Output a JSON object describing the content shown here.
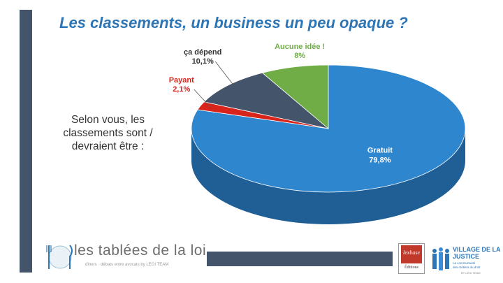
{
  "slide": {
    "title": "Les classements, un business un peu opaque ?",
    "question": "Selon vous, les classements sont / devraient être :"
  },
  "chart_data": {
    "type": "pie",
    "title": "",
    "slices": [
      {
        "label": "Gratuit",
        "value": 79.8,
        "value_label": "79,8%",
        "color": "#2e86cf",
        "side_color": "#1f5f96",
        "label_color": "#ffffff"
      },
      {
        "label": "Payant",
        "value": 2.1,
        "value_label": "2,1%",
        "color": "#d9241c",
        "side_color": "#8e1610",
        "label_color": "#d9241c"
      },
      {
        "label": "ça dépend",
        "value": 10.1,
        "value_label": "10,1%",
        "color": "#44546a",
        "side_color": "#2c3847",
        "label_color": "#333333"
      },
      {
        "label": "Aucune idée !",
        "value": 8,
        "value_label": "8%",
        "color": "#70ad47",
        "side_color": "#4c7a2f",
        "label_color": "#70ad47"
      }
    ],
    "style": "3d"
  },
  "footer": {
    "brand": "les tablées de la loi",
    "tagline": "dîners · débats entre avocats by LEGI TEAM",
    "lexbase_word": "lexbase",
    "lexbase_sub": "Éditions",
    "village_line1": "VILLAGE DE LA",
    "village_line2": "JUSTICE",
    "village_line3": "La communauté",
    "village_line4": "des métiers du droit",
    "village_line5": "BY LEGI TEAM"
  }
}
